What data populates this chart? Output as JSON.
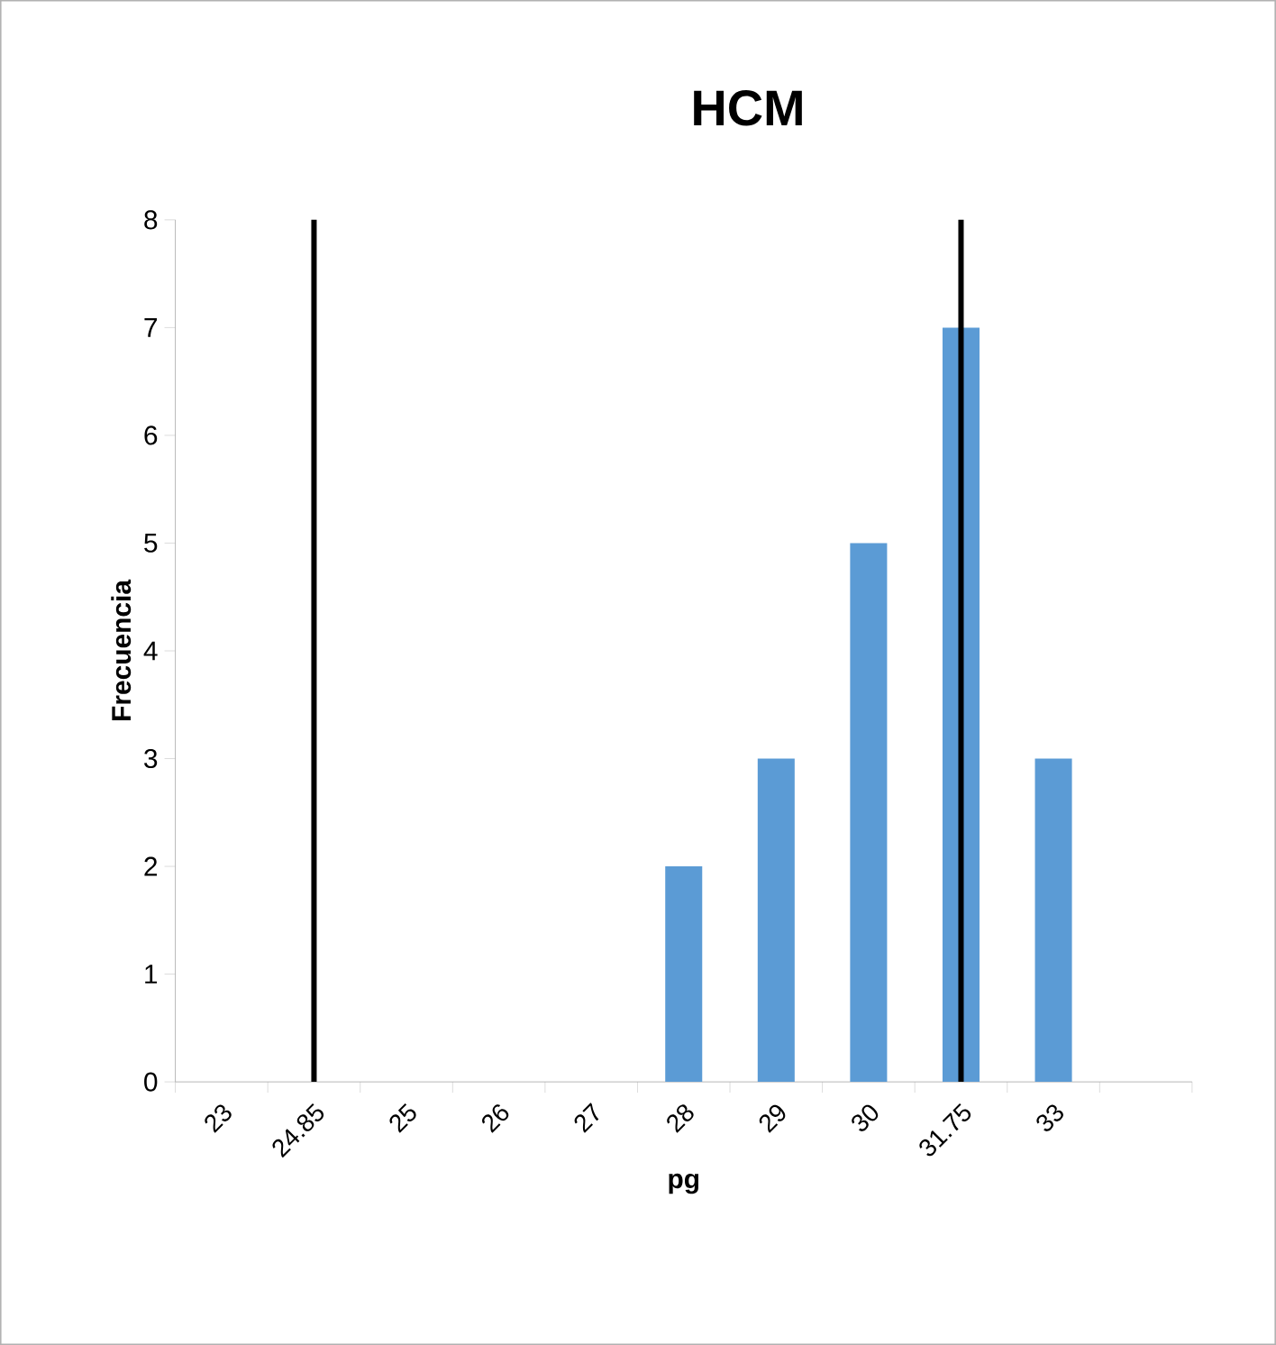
{
  "chart_data": {
    "type": "bar",
    "title": "HCM",
    "xlabel": "pg",
    "ylabel": "Frecuencia",
    "categories": [
      "23",
      "24.85",
      "25",
      "26",
      "27",
      "28",
      "29",
      "30",
      "31.75",
      "33",
      null
    ],
    "values": [
      0,
      0,
      0,
      0,
      0,
      2,
      3,
      5,
      7,
      3,
      0
    ],
    "color": "#5b9bd5",
    "ylim": [
      0,
      8
    ],
    "yticks": [
      0,
      1,
      2,
      3,
      4,
      5,
      6,
      7,
      8
    ],
    "grid": false,
    "ref_lines": [
      {
        "axis": "x",
        "value": "24.85",
        "color": "#000000"
      },
      {
        "axis": "x",
        "value": "31.75",
        "color": "#000000"
      }
    ]
  }
}
